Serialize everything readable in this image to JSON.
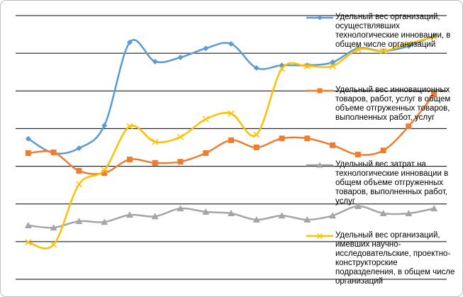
{
  "chart_data": {
    "type": "line",
    "categories": [
      null,
      null,
      null,
      null,
      null,
      null,
      null,
      null,
      null,
      null,
      null,
      null,
      null,
      null,
      null,
      null,
      null
    ],
    "ylim": [
      0,
      7
    ],
    "yticks": [
      0,
      1,
      2,
      3,
      4,
      5,
      6,
      7
    ],
    "grid": true,
    "legend": "right",
    "series": [
      {
        "name": "Удельный вес организаций, осуществлявших технологические инновации, в общем числе организаций",
        "color": "#5b9bd5",
        "marker": "diamond",
        "values": [
          3.73,
          3.35,
          3.48,
          4.08,
          6.29,
          5.78,
          5.89,
          6.13,
          6.25,
          5.61,
          5.68,
          5.68,
          5.76,
          6.13,
          6.06,
          6.19,
          6.47
        ]
      },
      {
        "name": "Удельный вес инновационных товаров, работ, услуг в общем объеме отгруженных товаров, выполненных работ, услуг",
        "color": "#ed7d31",
        "marker": "square",
        "values": [
          3.35,
          3.37,
          2.88,
          2.82,
          3.18,
          3.09,
          3.12,
          3.35,
          3.69,
          3.5,
          3.74,
          3.74,
          3.56,
          3.31,
          3.42,
          4.06,
          4.91
        ]
      },
      {
        "name": "Удельный вес затрат на технологические инновации в общем объеме отгруженных товаров, выполненных работ, услуг",
        "color": "#a5a5a5",
        "marker": "triangle",
        "values": [
          1.43,
          1.37,
          1.54,
          1.52,
          1.71,
          1.67,
          1.88,
          1.79,
          1.75,
          1.58,
          1.69,
          1.58,
          1.69,
          1.94,
          1.75,
          1.75,
          1.88
        ]
      },
      {
        "name": "Удельный вес организаций, имевших научно-исследовательские, проектно-конструкторские подразделения, в общем числе организаций",
        "color": "#ffc000",
        "marker": "x",
        "values": [
          0.98,
          0.92,
          2.52,
          2.9,
          4.06,
          3.65,
          3.78,
          4.25,
          4.4,
          3.84,
          5.59,
          5.66,
          5.66,
          6.1,
          6.06,
          6.25,
          6.44
        ]
      }
    ]
  }
}
